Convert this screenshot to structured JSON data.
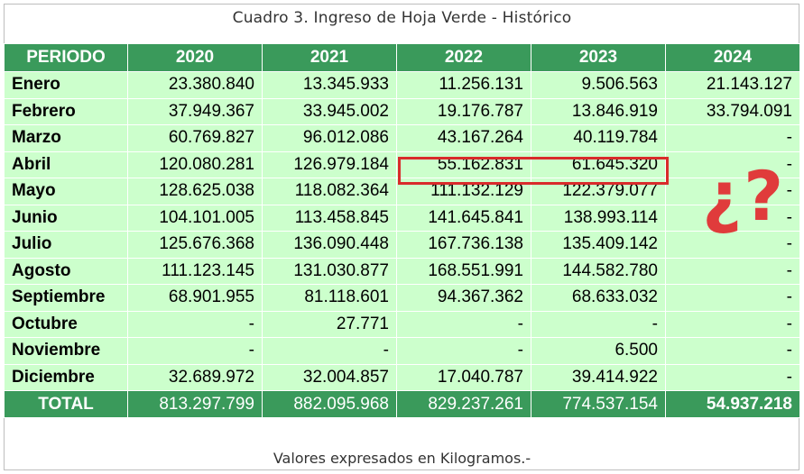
{
  "title": "Cuadro 3. Ingreso de Hoja Verde - Histórico",
  "header": [
    "PERIODO",
    "2020",
    "2021",
    "2022",
    "2023",
    "2024"
  ],
  "rows": [
    [
      "Enero",
      "23.380.840",
      "13.345.933",
      "11.256.131",
      "9.506.563",
      "21.143.127"
    ],
    [
      "Febrero",
      "37.949.367",
      "33.945.002",
      "19.176.787",
      "13.846.919",
      "33.794.091"
    ],
    [
      "Marzo",
      "60.769.827",
      "96.012.086",
      "43.167.264",
      "40.119.784",
      "-"
    ],
    [
      "Abril",
      "120.080.281",
      "126.979.184",
      "55.162.831",
      "61.645.320",
      "-"
    ],
    [
      "Mayo",
      "128.625.038",
      "118.082.364",
      "111.132.129",
      "122.379.077",
      "-"
    ],
    [
      "Junio",
      "104.101.005",
      "113.458.845",
      "141.645.841",
      "138.993.114",
      "-"
    ],
    [
      "Julio",
      "125.676.368",
      "136.090.448",
      "167.736.138",
      "135.409.142",
      "-"
    ],
    [
      "Agosto",
      "111.123.145",
      "131.030.877",
      "168.551.991",
      "144.582.780",
      "-"
    ],
    [
      "Septiembre",
      "68.901.955",
      "81.118.601",
      "94.367.362",
      "68.633.032",
      "-"
    ],
    [
      "Octubre",
      "-",
      "27.771",
      "-",
      "-",
      "-"
    ],
    [
      "Noviembre",
      "-",
      "-",
      "-",
      "6.500",
      "-"
    ],
    [
      "Diciembre",
      "32.689.972",
      "32.004.857",
      "17.040.787",
      "39.414.922",
      "-"
    ]
  ],
  "total": [
    "TOTAL",
    "813.297.799",
    "882.095.968",
    "829.237.261",
    "774.537.154",
    "54.937.218"
  ],
  "annotation": "¿?",
  "note": "Valores expresados en Kilogramos.-",
  "colors": {
    "header_bg": "#3a9a5b",
    "row_bg": "#ccffcc",
    "highlight": "#d92b2b",
    "annotation": "#e03b3b"
  }
}
